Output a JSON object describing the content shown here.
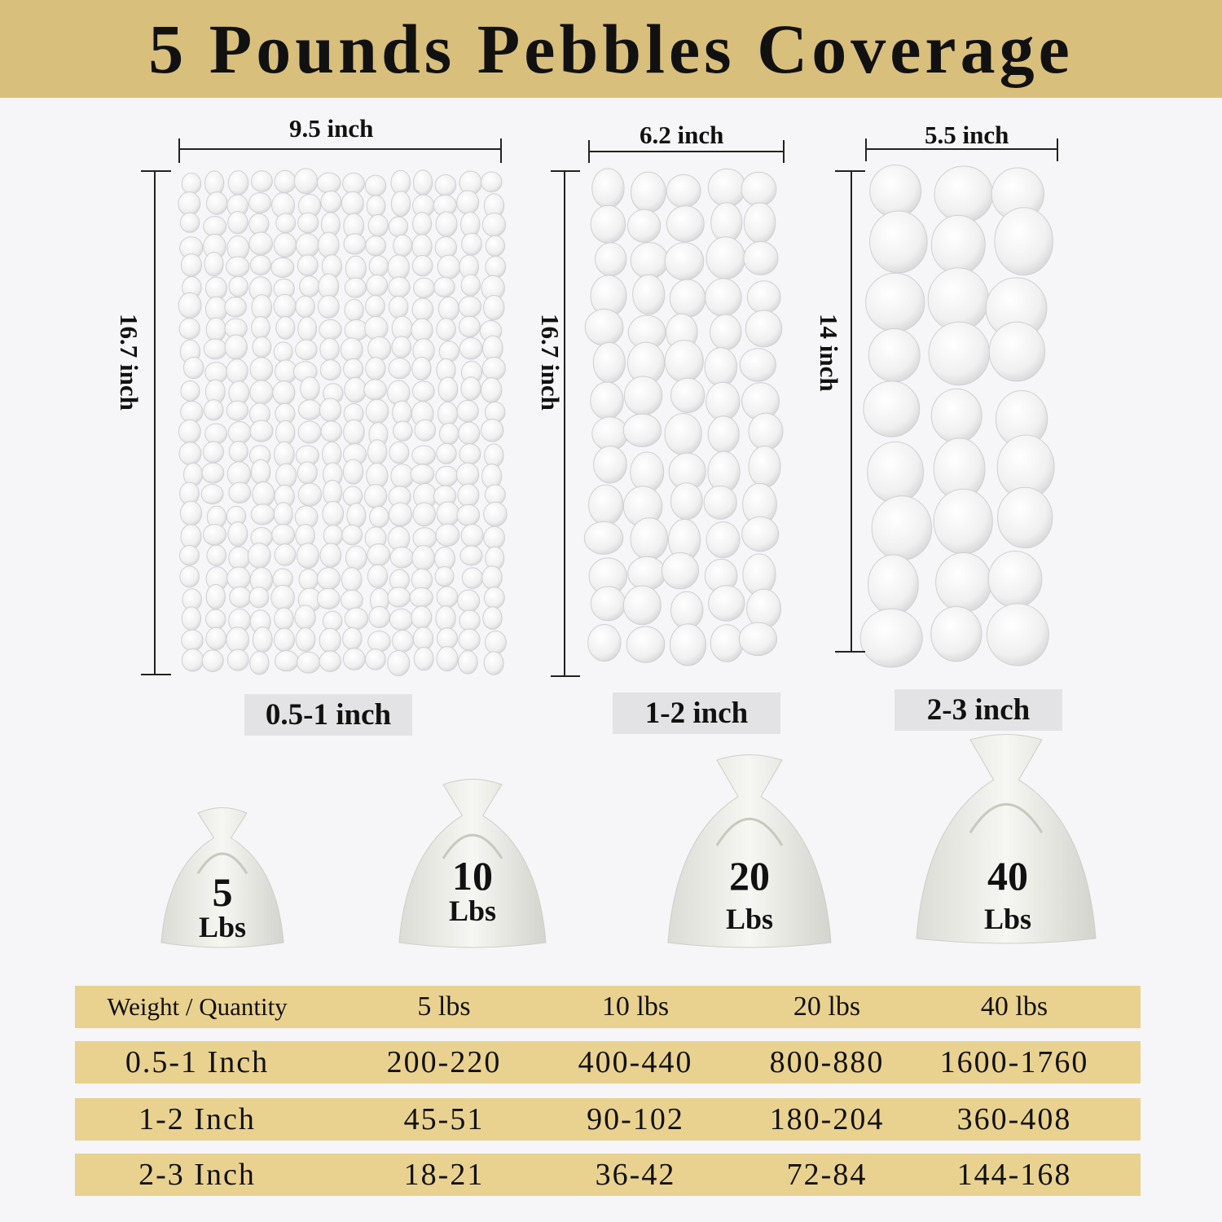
{
  "title": "5 Pounds Pebbles Coverage",
  "colors": {
    "header_bg": "#d9bf7c",
    "table_row_bg": "#e9d290",
    "page_bg": "#f6f5f7",
    "size_label_bg": "#e3e3e5"
  },
  "panels": [
    {
      "width_label": "9.5 inch",
      "height_label": "16.7 inch",
      "size_label": "0.5-1 inch"
    },
    {
      "width_label": "6.2 inch",
      "height_label": "16.7 inch",
      "size_label": "1-2 inch"
    },
    {
      "width_label": "5.5 inch",
      "height_label": "14 inch",
      "size_label": "2-3 inch"
    }
  ],
  "bags": [
    {
      "number": "5",
      "unit": "Lbs"
    },
    {
      "number": "10",
      "unit": "Lbs"
    },
    {
      "number": "20",
      "unit": "Lbs"
    },
    {
      "number": "40",
      "unit": "Lbs"
    }
  ],
  "table": {
    "header": [
      "Weight / Quantity",
      "5 lbs",
      "10 lbs",
      "20 lbs",
      "40 lbs"
    ],
    "rows": [
      [
        "0.5-1 Inch",
        "200-220",
        "400-440",
        "800-880",
        "1600-1760"
      ],
      [
        "1-2 Inch",
        "45-51",
        "90-102",
        "180-204",
        "360-408"
      ],
      [
        "2-3 Inch",
        "18-21",
        "36-42",
        "72-84",
        "144-168"
      ]
    ]
  }
}
